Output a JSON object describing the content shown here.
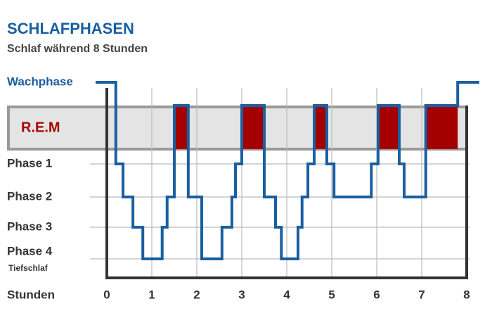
{
  "chart_data": {
    "type": "line",
    "title": "SCHLAFPHASEN",
    "subtitle": "Schlaf während 8 Stunden",
    "xlabel": "Stunden",
    "annotation": "Tiefschlaf",
    "xlim": [
      0,
      8
    ],
    "xticks": [
      0,
      1,
      2,
      3,
      4,
      5,
      6,
      7,
      8
    ],
    "ylim": [
      0,
      5
    ],
    "yticks": [
      {
        "value": 5,
        "label": "Wachphase"
      },
      {
        "value": 4,
        "label": "R.E.M"
      },
      {
        "value": 3,
        "label": "Phase 1"
      },
      {
        "value": 2,
        "label": "Phase 2"
      },
      {
        "value": 1,
        "label": "Phase 3"
      },
      {
        "value": 0,
        "label": "Phase 4"
      }
    ],
    "grid": true,
    "highlight_color": "#a50000",
    "series": [
      {
        "color": "#1a5fa0",
        "x": [
          -0.25,
          0.2,
          0.2,
          0.36,
          0.36,
          0.58,
          0.58,
          0.8,
          0.8,
          1.23,
          1.23,
          1.34,
          1.34,
          1.5,
          1.5,
          1.81,
          1.81,
          2.11,
          2.11,
          2.56,
          2.56,
          2.78,
          2.78,
          2.86,
          2.86,
          3.0,
          3.0,
          3.5,
          3.5,
          3.75,
          3.75,
          3.88,
          3.88,
          4.25,
          4.25,
          4.34,
          4.34,
          4.47,
          4.47,
          4.61,
          4.61,
          4.89,
          4.89,
          5.05,
          5.05,
          5.88,
          5.88,
          6.03,
          6.03,
          6.5,
          6.5,
          6.61,
          6.61,
          7.09,
          7.09,
          7.8,
          7.8,
          8.28
        ],
        "values": [
          5,
          5,
          3,
          3,
          2,
          2,
          1,
          1,
          0,
          0,
          1,
          1,
          2,
          2,
          4,
          4,
          2,
          2,
          0,
          0,
          1,
          1,
          2,
          2,
          3,
          3,
          4,
          4,
          2,
          2,
          1,
          1,
          0,
          0,
          1,
          1,
          2,
          2,
          3,
          3,
          4,
          4,
          3,
          3,
          2,
          2,
          3,
          3,
          4,
          4,
          3,
          3,
          2,
          2,
          4,
          4,
          5,
          5
        ]
      }
    ]
  }
}
